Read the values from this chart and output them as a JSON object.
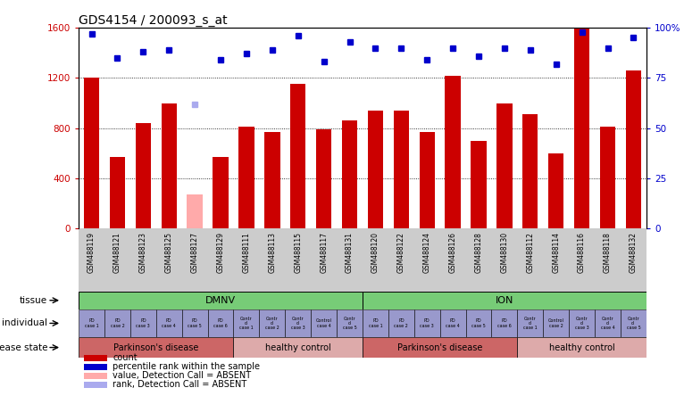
{
  "title": "GDS4154 / 200093_s_at",
  "samples": [
    "GSM488119",
    "GSM488121",
    "GSM488123",
    "GSM488125",
    "GSM488127",
    "GSM488129",
    "GSM488111",
    "GSM488113",
    "GSM488115",
    "GSM488117",
    "GSM488131",
    "GSM488120",
    "GSM488122",
    "GSM488124",
    "GSM488126",
    "GSM488128",
    "GSM488130",
    "GSM488112",
    "GSM488114",
    "GSM488116",
    "GSM488118",
    "GSM488132"
  ],
  "bar_values": [
    1200,
    570,
    840,
    1000,
    null,
    570,
    810,
    770,
    1150,
    790,
    860,
    940,
    940,
    770,
    1220,
    700,
    1000,
    910,
    600,
    1600,
    810,
    1260
  ],
  "absent_bar_values": [
    null,
    null,
    null,
    null,
    270,
    null,
    null,
    null,
    null,
    null,
    null,
    null,
    null,
    null,
    null,
    null,
    null,
    null,
    null,
    null,
    null,
    null
  ],
  "percentile_values": [
    97,
    85,
    88,
    89,
    null,
    84,
    87,
    89,
    96,
    83,
    93,
    90,
    90,
    84,
    90,
    86,
    90,
    89,
    82,
    98,
    90,
    95
  ],
  "absent_percentile_values": [
    null,
    null,
    null,
    null,
    62,
    null,
    null,
    null,
    null,
    null,
    null,
    null,
    null,
    null,
    null,
    null,
    null,
    null,
    null,
    null,
    null,
    null
  ],
  "ylim_left": [
    0,
    1600
  ],
  "ylim_right": [
    0,
    100
  ],
  "yticks_left": [
    0,
    400,
    800,
    1200,
    1600
  ],
  "yticks_right": [
    0,
    25,
    50,
    75,
    100
  ],
  "ytick_labels_right": [
    "0",
    "25",
    "50",
    "75",
    "100%"
  ],
  "bar_color": "#cc0000",
  "absent_bar_color": "#ffaaaa",
  "dot_color": "#0000cc",
  "absent_dot_color": "#aaaaee",
  "tissue_color": "#77cc77",
  "individual_color": "#9999cc",
  "disease_state_pd_color": "#cc6666",
  "disease_state_hc_color": "#ddaaaa",
  "disease_state_groups": [
    {
      "label": "Parkinson's disease",
      "start": 0,
      "end": 5,
      "color": "#cc6666"
    },
    {
      "label": "healthy control",
      "start": 6,
      "end": 10,
      "color": "#ddaaaa"
    },
    {
      "label": "Parkinson's disease",
      "start": 11,
      "end": 16,
      "color": "#cc6666"
    },
    {
      "label": "healthy control",
      "start": 17,
      "end": 21,
      "color": "#ddaaaa"
    }
  ],
  "legend_items": [
    {
      "label": "count",
      "color": "#cc0000"
    },
    {
      "label": "percentile rank within the sample",
      "color": "#0000cc"
    },
    {
      "label": "value, Detection Call = ABSENT",
      "color": "#ffaaaa"
    },
    {
      "label": "rank, Detection Call = ABSENT",
      "color": "#aaaaee"
    }
  ],
  "hlines": [
    400,
    800,
    1200
  ],
  "xtick_bg_color": "#cccccc"
}
